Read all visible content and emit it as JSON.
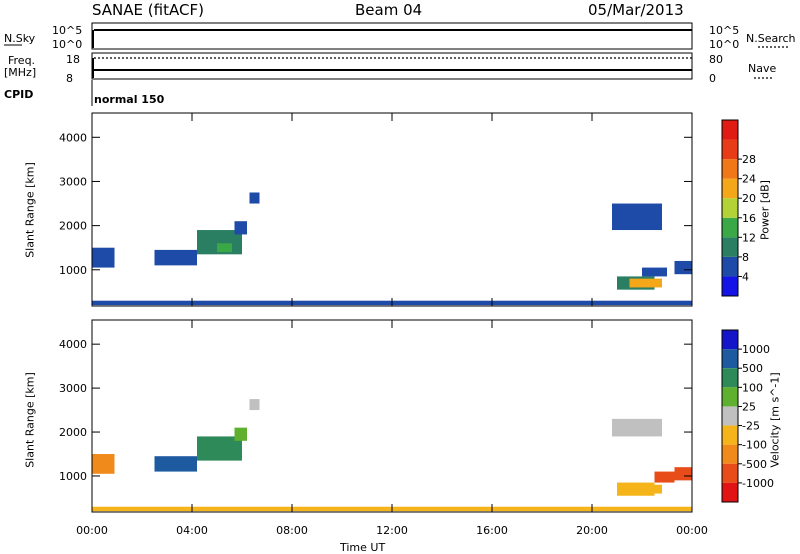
{
  "header": {
    "station": "SANAE (fitACF)",
    "beam": "Beam 04",
    "date": "05/Mar/2013"
  },
  "strips": {
    "nsky": {
      "label": "N.Sky",
      "ticks": [
        "10^5",
        "10^0"
      ]
    },
    "nsearch": {
      "label": "N.Search",
      "ticks": [
        "10^5",
        "10^0"
      ]
    },
    "freq": {
      "label_top": "Freq.",
      "label_bottom": "[MHz]",
      "ticks": [
        "18",
        "8"
      ]
    },
    "nave": {
      "label": "Nave",
      "ticks": [
        "80",
        "0"
      ]
    },
    "cpid": {
      "label": "CPID",
      "mode": "normal 150"
    }
  },
  "colors": {
    "power": [
      "#1414e6",
      "#1e4aa8",
      "#2a7f62",
      "#3aa846",
      "#b2d235",
      "#f5a71a",
      "#f07819",
      "#e83c18",
      "#e01b14"
    ],
    "velocity": [
      "#1414c8",
      "#1e5aa0",
      "#2e8a58",
      "#60b030",
      "#c0c0c0",
      "#f5b51a",
      "#f08a1a",
      "#e84c18",
      "#e01414"
    ]
  },
  "chart_data": [
    {
      "type": "heatmap",
      "title": "Power",
      "xlabel": "",
      "ylabel": "Slant Range [km]",
      "xlim": [
        0,
        24
      ],
      "ylim": [
        180,
        4550
      ],
      "xticks": [
        "00:00",
        "04:00",
        "08:00",
        "12:00",
        "16:00",
        "20:00",
        "00:00"
      ],
      "yticks": [
        1000,
        2000,
        3000,
        4000
      ],
      "colorbar": {
        "label": "Power [dB]",
        "range": [
          0,
          32
        ],
        "ticks": [
          "4",
          "8",
          "12",
          "16",
          "20",
          "24",
          "28"
        ]
      },
      "regions": [
        {
          "t": [
            0.0,
            0.9
          ],
          "r": [
            1050,
            1500
          ],
          "value": 6
        },
        {
          "t": [
            0.0,
            24.0
          ],
          "r": [
            200,
            300
          ],
          "value": 5
        },
        {
          "t": [
            2.5,
            4.2
          ],
          "r": [
            1100,
            1450
          ],
          "value": 7
        },
        {
          "t": [
            4.2,
            6.0
          ],
          "r": [
            1350,
            1900
          ],
          "value": 8
        },
        {
          "t": [
            5.0,
            5.6
          ],
          "r": [
            1400,
            1600
          ],
          "value": 12
        },
        {
          "t": [
            5.7,
            6.2
          ],
          "r": [
            1800,
            2100
          ],
          "value": 6
        },
        {
          "t": [
            6.3,
            6.7
          ],
          "r": [
            2500,
            2750
          ],
          "value": 6
        },
        {
          "t": [
            21.0,
            22.5
          ],
          "r": [
            550,
            850
          ],
          "value": 10
        },
        {
          "t": [
            21.5,
            22.8
          ],
          "r": [
            600,
            800
          ],
          "value": 20
        },
        {
          "t": [
            22.0,
            23.0
          ],
          "r": [
            850,
            1050
          ],
          "value": 5
        },
        {
          "t": [
            20.8,
            22.8
          ],
          "r": [
            1900,
            2500
          ],
          "value": 5
        },
        {
          "t": [
            23.3,
            24.0
          ],
          "r": [
            900,
            1200
          ],
          "value": 6
        }
      ]
    },
    {
      "type": "heatmap",
      "title": "Velocity",
      "xlabel": "Time UT",
      "ylabel": "Slant Range [km]",
      "xlim": [
        0,
        24
      ],
      "ylim": [
        180,
        4550
      ],
      "xticks": [
        "00:00",
        "04:00",
        "08:00",
        "12:00",
        "16:00",
        "20:00",
        "00:00"
      ],
      "yticks": [
        1000,
        2000,
        3000,
        4000
      ],
      "colorbar": {
        "label": "Velocity [m s^-1]",
        "ticks": [
          "1000",
          "500",
          "100",
          "25",
          "-25",
          "-100",
          "-500",
          "-1000"
        ]
      },
      "regions": [
        {
          "t": [
            0.0,
            0.9
          ],
          "r": [
            1050,
            1500
          ],
          "value": -500
        },
        {
          "t": [
            0.0,
            24.0
          ],
          "r": [
            200,
            300
          ],
          "value": -50
        },
        {
          "t": [
            2.5,
            4.2
          ],
          "r": [
            1100,
            1450
          ],
          "value": 800
        },
        {
          "t": [
            4.2,
            6.0
          ],
          "r": [
            1350,
            1900
          ],
          "value": 200
        },
        {
          "t": [
            5.7,
            6.2
          ],
          "r": [
            1800,
            2100
          ],
          "value": 50
        },
        {
          "t": [
            6.3,
            6.7
          ],
          "r": [
            2500,
            2750
          ],
          "value": 0
        },
        {
          "t": [
            21.0,
            22.5
          ],
          "r": [
            550,
            850
          ],
          "value": -100
        },
        {
          "t": [
            21.5,
            22.8
          ],
          "r": [
            600,
            800
          ],
          "value": -60
        },
        {
          "t": [
            22.5,
            23.3
          ],
          "r": [
            850,
            1100
          ],
          "value": -600
        },
        {
          "t": [
            20.8,
            22.8
          ],
          "r": [
            1900,
            2300
          ],
          "value": 0
        },
        {
          "t": [
            23.3,
            24.0
          ],
          "r": [
            900,
            1200
          ],
          "value": -800
        }
      ]
    }
  ]
}
